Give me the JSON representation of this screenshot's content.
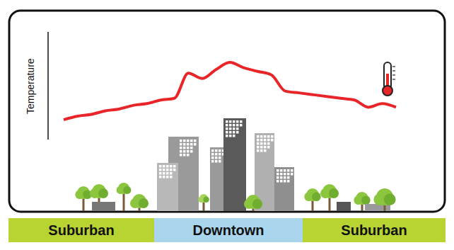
{
  "chart_data": {
    "type": "line",
    "y_label": "Temperature",
    "categories": [
      null,
      null,
      null,
      null,
      null,
      null,
      null,
      null,
      null,
      null,
      null,
      null,
      null,
      null,
      null,
      null,
      null,
      null,
      null,
      null,
      null,
      null,
      null,
      null,
      null
    ],
    "values": [
      1.1,
      1.3,
      1.4,
      1.6,
      1.7,
      1.9,
      2.0,
      2.2,
      2.3,
      3.7,
      3.4,
      3.9,
      4.3,
      4.0,
      3.8,
      3.6,
      2.7,
      2.6,
      2.5,
      2.4,
      2.3,
      2.2,
      1.8,
      2.0,
      1.8
    ],
    "color": "#e8262a",
    "ylim": [
      0,
      6
    ],
    "yticks": [
      0,
      1,
      2,
      3,
      4,
      5,
      6
    ],
    "grid": false,
    "tick_labels": false,
    "regions": [
      "Suburban",
      "Downtown",
      "Suburban"
    ]
  }
}
